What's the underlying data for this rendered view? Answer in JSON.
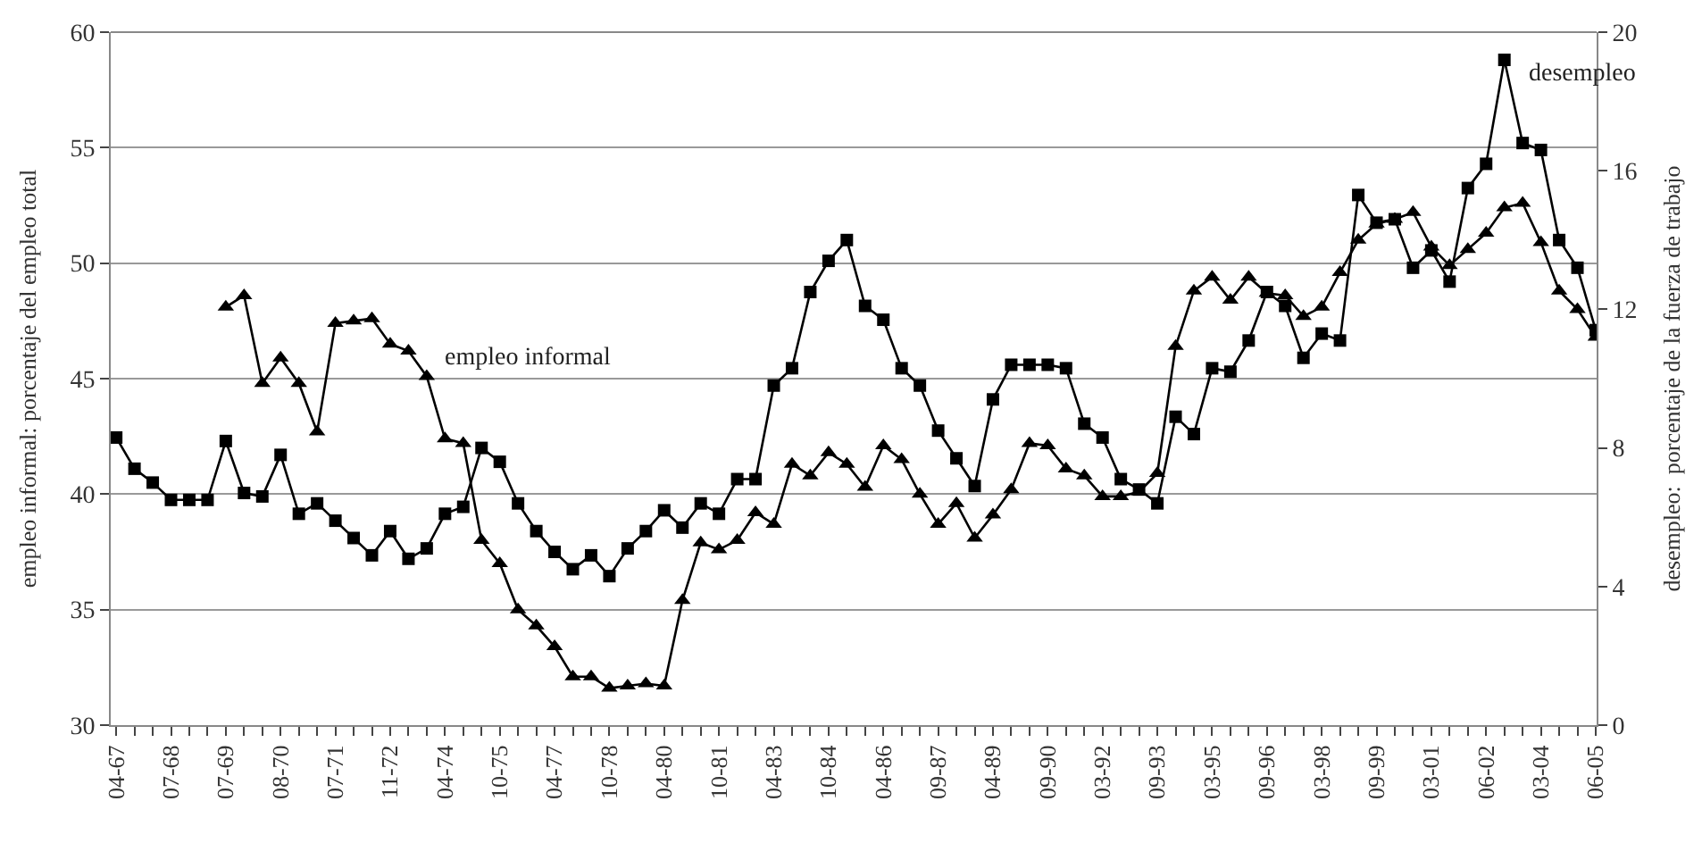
{
  "chart_data": {
    "type": "line",
    "xlabel": null,
    "ylabel": "empleo informal: porcentaje del empleo total",
    "y2label": "desempleo:  porcentaje de la fuerza de trabajo",
    "categories": [
      "04-67",
      null,
      null,
      "07-68",
      null,
      null,
      "07-69",
      null,
      null,
      "08-70",
      null,
      null,
      "07-71",
      null,
      null,
      "11-72",
      null,
      null,
      "04-74",
      null,
      null,
      "10-75",
      null,
      null,
      "04-77",
      null,
      null,
      "10-78",
      null,
      null,
      "04-80",
      null,
      null,
      "10-81",
      null,
      null,
      "04-83",
      null,
      null,
      "10-84",
      null,
      null,
      "04-86",
      null,
      null,
      "09-87",
      null,
      null,
      "04-89",
      null,
      null,
      "09-90",
      null,
      null,
      "03-92",
      null,
      null,
      "09-93",
      null,
      null,
      "03-95",
      null,
      null,
      "09-96",
      null,
      null,
      "03-98",
      null,
      null,
      "09-99",
      null,
      null,
      "03-01",
      null,
      null,
      "06-02",
      null,
      null,
      "03-04",
      null,
      null,
      "06-05"
    ],
    "series": [
      {
        "name": "desempleo",
        "color": "#000000",
        "marker": "square",
        "axis": "y2",
        "values": [
          8.3,
          7.4,
          7.0,
          6.5,
          6.5,
          6.5,
          8.2,
          6.7,
          6.6,
          7.8,
          6.1,
          6.4,
          5.9,
          5.4,
          4.9,
          5.6,
          4.8,
          5.1,
          6.1,
          6.3,
          8.0,
          7.6,
          6.4,
          5.6,
          5.0,
          4.5,
          4.9,
          4.3,
          5.1,
          5.6,
          6.2,
          5.7,
          6.4,
          6.1,
          7.1,
          7.1,
          9.8,
          10.3,
          12.5,
          13.4,
          14.0,
          12.1,
          11.7,
          10.3,
          9.8,
          8.5,
          7.7,
          6.9,
          9.4,
          10.4,
          10.4,
          10.4,
          10.3,
          8.7,
          8.3,
          7.1,
          6.8,
          6.4,
          8.9,
          8.4,
          10.3,
          10.2,
          11.1,
          12.5,
          12.1,
          10.6,
          11.3,
          11.1,
          15.3,
          14.5,
          14.6,
          13.2,
          13.7,
          12.8,
          15.5,
          16.2,
          19.2,
          16.8,
          16.6,
          14.0,
          13.2,
          11.4
        ]
      },
      {
        "name": "empleo informal",
        "color": "#000000",
        "marker": "triangle",
        "values": [
          null,
          null,
          null,
          null,
          null,
          null,
          48.1,
          48.6,
          44.8,
          45.9,
          44.8,
          42.7,
          47.4,
          47.5,
          47.6,
          46.5,
          46.2,
          45.1,
          42.4,
          42.2,
          38.0,
          37.0,
          35.0,
          34.3,
          33.4,
          32.1,
          32.1,
          31.6,
          31.7,
          31.8,
          31.7,
          35.4,
          37.9,
          37.6,
          38.0,
          39.2,
          38.7,
          41.3,
          40.8,
          41.8,
          41.3,
          40.3,
          42.1,
          41.5,
          40.0,
          38.7,
          39.6,
          38.1,
          39.1,
          40.2,
          42.2,
          42.1,
          41.1,
          40.8,
          39.9,
          39.9,
          40.1,
          40.9,
          46.4,
          48.8,
          49.4,
          48.4,
          49.4,
          48.7,
          48.6,
          47.7,
          48.1,
          49.6,
          51.0,
          51.7,
          51.9,
          52.2,
          50.7,
          49.9,
          50.6,
          51.3,
          52.4,
          52.6,
          50.9,
          48.8,
          48.0,
          46.8
        ]
      }
    ],
    "ylim": [
      30,
      60
    ],
    "yticks": [
      30,
      35,
      40,
      45,
      50,
      55,
      60
    ],
    "y2lim": [
      0,
      20
    ],
    "y2ticks": [
      0,
      4,
      8,
      12,
      16,
      20
    ],
    "grid": "y",
    "legend": false,
    "line_style": "solid"
  }
}
